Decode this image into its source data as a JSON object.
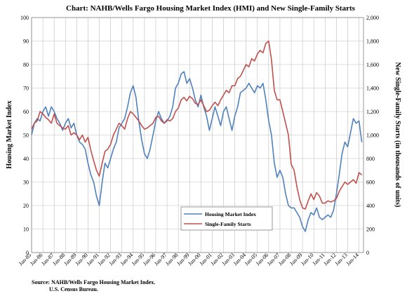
{
  "chart_data": {
    "type": "line",
    "title": "Chart:  NAHB/Wells Fargo Housing Market Index (HMI) and New Single-Family  Starts",
    "ylabel_left": "Housing Market Index",
    "ylabel_right": "New Single-Family  Starts  (in thousands of units)",
    "source_line1": "Source: NAHB/Wells Fargo Housing Market Index.",
    "source_line2": "U.S. Census Bureau.",
    "ylim_left": [
      0,
      100
    ],
    "ylim_right": [
      0,
      2000
    ],
    "yticks_left": [
      "0",
      "10",
      "20",
      "30",
      "40",
      "50",
      "60",
      "70",
      "80",
      "90",
      "100"
    ],
    "yticks_right": [
      "0",
      "200",
      "400",
      "600",
      "800",
      "1,000",
      "1,200",
      "1,400",
      "1,600",
      "1,800",
      "2,000"
    ],
    "xticks": [
      "Jan-85",
      "Jan-86",
      "Jan-87",
      "Jan-88",
      "Jan-89",
      "Jan-90",
      "Jan-91",
      "Jan-92",
      "Jan-93",
      "Jan-94",
      "Jan-95",
      "Jan-96",
      "Jan-97",
      "Jan-98",
      "Jan-99",
      "Jan-00",
      "Jan-01",
      "Jan-02",
      "Jan-03",
      "Jan-04",
      "Jan-05",
      "Jan-06",
      "Jan-07",
      "Jan-08",
      "Jan-09",
      "Jan-10",
      "Jan-11",
      "Jan-12",
      "Jan-13",
      "Jan-14"
    ],
    "grid": true,
    "legend_position": "bottom-center",
    "series": [
      {
        "name": "Housing Market Index",
        "axis": "left",
        "color": "#4F81BD",
        "x": [
          1985.0,
          1985.25,
          1985.5,
          1985.75,
          1986.0,
          1986.25,
          1986.5,
          1986.75,
          1987.0,
          1987.25,
          1987.5,
          1987.75,
          1988.0,
          1988.25,
          1988.5,
          1988.75,
          1989.0,
          1989.25,
          1989.5,
          1989.75,
          1990.0,
          1990.25,
          1990.5,
          1990.75,
          1991.0,
          1991.25,
          1991.5,
          1991.75,
          1992.0,
          1992.25,
          1992.5,
          1992.75,
          1993.0,
          1993.25,
          1993.5,
          1993.75,
          1994.0,
          1994.25,
          1994.5,
          1994.75,
          1995.0,
          1995.25,
          1995.5,
          1995.75,
          1996.0,
          1996.25,
          1996.5,
          1996.75,
          1997.0,
          1997.25,
          1997.5,
          1997.75,
          1998.0,
          1998.25,
          1998.5,
          1998.75,
          1999.0,
          1999.25,
          1999.5,
          1999.75,
          2000.0,
          2000.25,
          2000.5,
          2000.75,
          2001.0,
          2001.25,
          2001.5,
          2001.75,
          2002.0,
          2002.25,
          2002.5,
          2002.75,
          2003.0,
          2003.25,
          2003.5,
          2003.75,
          2004.0,
          2004.25,
          2004.5,
          2004.75,
          2005.0,
          2005.25,
          2005.5,
          2005.75,
          2006.0,
          2006.25,
          2006.5,
          2006.75,
          2007.0,
          2007.25,
          2007.5,
          2007.75,
          2008.0,
          2008.25,
          2008.5,
          2008.75,
          2009.0,
          2009.25,
          2009.5,
          2009.75,
          2010.0,
          2010.25,
          2010.5,
          2010.75,
          2011.0,
          2011.25,
          2011.5,
          2011.75,
          2012.0,
          2012.25,
          2012.5,
          2012.75,
          2013.0,
          2013.25,
          2013.5,
          2013.75,
          2014.0,
          2014.25
        ],
        "values": [
          50,
          55,
          57,
          56,
          60,
          62,
          58,
          62,
          60,
          57,
          55,
          52,
          55,
          57,
          53,
          55,
          50,
          47,
          46,
          44,
          38,
          33,
          30,
          24,
          20,
          30,
          38,
          36,
          40,
          44,
          47,
          53,
          55,
          57,
          62,
          68,
          71,
          66,
          56,
          48,
          42,
          40,
          44,
          50,
          56,
          60,
          57,
          55,
          56,
          58,
          62,
          70,
          72,
          76,
          77,
          72,
          74,
          70,
          65,
          62,
          67,
          62,
          58,
          52,
          57,
          62,
          58,
          54,
          60,
          62,
          57,
          52,
          58,
          62,
          68,
          69,
          70,
          72,
          70,
          68,
          71,
          70,
          72,
          65,
          56,
          50,
          38,
          32,
          35,
          32,
          25,
          20,
          19,
          19,
          17,
          15,
          11,
          9,
          14,
          17,
          16,
          19,
          15,
          14,
          15,
          16,
          15,
          18,
          25,
          33,
          42,
          47,
          45,
          51,
          57,
          55,
          56,
          47
        ]
      },
      {
        "name": "Single-Family Starts",
        "axis": "right",
        "color": "#C0504D",
        "x": [
          1985.0,
          1985.25,
          1985.5,
          1985.75,
          1986.0,
          1986.25,
          1986.5,
          1986.75,
          1987.0,
          1987.25,
          1987.5,
          1987.75,
          1988.0,
          1988.25,
          1988.5,
          1988.75,
          1989.0,
          1989.25,
          1989.5,
          1989.75,
          1990.0,
          1990.25,
          1990.5,
          1990.75,
          1991.0,
          1991.25,
          1991.5,
          1991.75,
          1992.0,
          1992.25,
          1992.5,
          1992.75,
          1993.0,
          1993.25,
          1993.5,
          1993.75,
          1994.0,
          1994.25,
          1994.5,
          1994.75,
          1995.0,
          1995.25,
          1995.5,
          1995.75,
          1996.0,
          1996.25,
          1996.5,
          1996.75,
          1997.0,
          1997.25,
          1997.5,
          1997.75,
          1998.0,
          1998.25,
          1998.5,
          1998.75,
          1999.0,
          1999.25,
          1999.5,
          1999.75,
          2000.0,
          2000.25,
          2000.5,
          2000.75,
          2001.0,
          2001.25,
          2001.5,
          2001.75,
          2002.0,
          2002.25,
          2002.5,
          2002.75,
          2003.0,
          2003.25,
          2003.5,
          2003.75,
          2004.0,
          2004.25,
          2004.5,
          2004.75,
          2005.0,
          2005.25,
          2005.5,
          2005.75,
          2006.0,
          2006.25,
          2006.5,
          2006.75,
          2007.0,
          2007.25,
          2007.5,
          2007.75,
          2008.0,
          2008.25,
          2008.5,
          2008.75,
          2009.0,
          2009.25,
          2009.5,
          2009.75,
          2010.0,
          2010.25,
          2010.5,
          2010.75,
          2011.0,
          2011.25,
          2011.5,
          2011.75,
          2012.0,
          2012.25,
          2012.5,
          2012.75,
          2013.0,
          2013.25,
          2013.5,
          2013.75,
          2014.0,
          2014.25
        ],
        "values": [
          1050,
          1100,
          1120,
          1200,
          1180,
          1150,
          1130,
          1100,
          1180,
          1100,
          1080,
          1060,
          1050,
          1080,
          1000,
          1020,
          1000,
          960,
          1000,
          940,
          980,
          870,
          780,
          700,
          650,
          760,
          860,
          880,
          920,
          1000,
          1050,
          1100,
          1080,
          1050,
          1140,
          1200,
          1180,
          1150,
          1120,
          1080,
          1050,
          1060,
          1080,
          1100,
          1150,
          1160,
          1120,
          1100,
          1130,
          1120,
          1140,
          1200,
          1230,
          1300,
          1320,
          1290,
          1330,
          1310,
          1270,
          1260,
          1300,
          1250,
          1200,
          1210,
          1250,
          1280,
          1250,
          1300,
          1340,
          1380,
          1360,
          1420,
          1420,
          1480,
          1500,
          1550,
          1600,
          1580,
          1650,
          1630,
          1690,
          1720,
          1700,
          1780,
          1800,
          1640,
          1380,
          1300,
          1300,
          1200,
          1100,
          1000,
          750,
          700,
          560,
          450,
          380,
          370,
          440,
          500,
          450,
          510,
          480,
          420,
          420,
          440,
          430,
          440,
          460,
          520,
          560,
          600,
          580,
          600,
          620,
          590,
          680,
          660
        ]
      }
    ]
  }
}
